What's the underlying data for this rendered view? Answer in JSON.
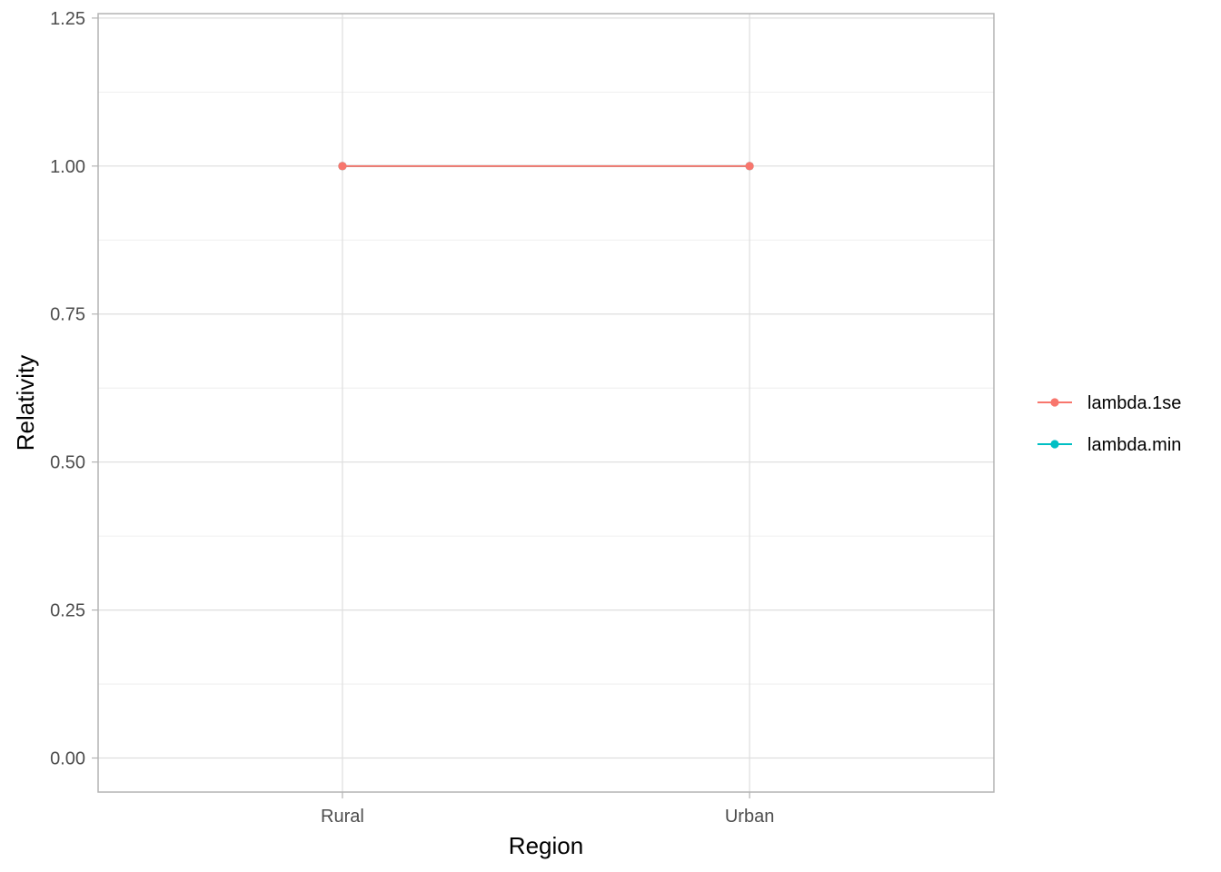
{
  "chart_data": {
    "type": "line",
    "title": "",
    "xlabel": "Region",
    "ylabel": "Relativity",
    "categories": [
      "Rural",
      "Urban"
    ],
    "ylim": [
      -0.0575,
      1.2575
    ],
    "yticks": [
      0.0,
      0.25,
      0.5,
      0.75,
      1.0,
      1.25
    ],
    "ytick_labels": [
      "0.00",
      "0.25",
      "0.50",
      "0.75",
      "1.00",
      "1.25"
    ],
    "grid": true,
    "legend_position": "right",
    "series": [
      {
        "name": "lambda.1se",
        "color": "#F8766D",
        "values": [
          1.0,
          1.0
        ]
      },
      {
        "name": "lambda.min",
        "color": "#00BFC4",
        "values": [
          1.0,
          1.0
        ]
      }
    ]
  }
}
